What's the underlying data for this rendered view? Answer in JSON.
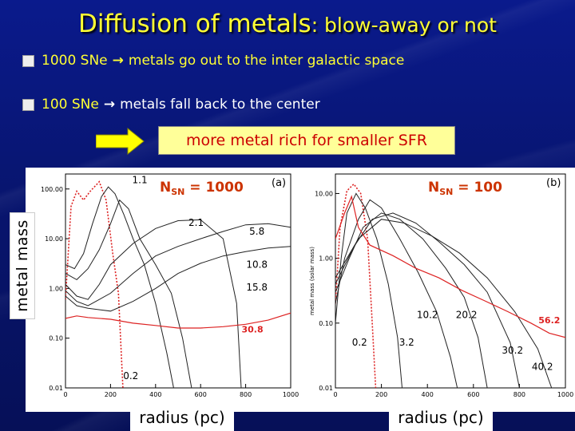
{
  "title": {
    "main": "Diffusion of metals",
    "sub": ": blow-away or not"
  },
  "bullets": [
    {
      "lead": "1000 SNe",
      "rest": "metals go out to the inter galactic space"
    },
    {
      "lead": "100 SNe",
      "rest": "metals fall back to the center"
    }
  ],
  "callout": "more metal rich for smaller SFR",
  "y_label": "metal mass",
  "x_label_left": "radius (pc)",
  "x_label_right": "radius (pc)",
  "colors": {
    "yellow": "#ffff33",
    "red": "#dd2222",
    "accent": "#cc3300"
  },
  "chart_data": [
    {
      "type": "line",
      "panel": "(a)",
      "title": "N",
      "title_sub": "SN",
      "title_rest": " = 1000",
      "yscale": "log",
      "ylim": [
        0.01,
        200
      ],
      "xlim": [
        0,
        1000
      ],
      "xticks": [
        0,
        200,
        400,
        600,
        800,
        1000
      ],
      "yticks": [
        0.01,
        0.1,
        1,
        10,
        100
      ],
      "yticklabels": [
        "0.01",
        "0.10",
        "1.00",
        "10.00",
        "100.00"
      ],
      "ylabel_small": "",
      "series": [
        {
          "name": "0.2",
          "style": "dotted-red",
          "points": [
            [
              0,
              0.6
            ],
            [
              25,
              45
            ],
            [
              50,
              90
            ],
            [
              80,
              60
            ],
            [
              110,
              90
            ],
            [
              150,
              140
            ],
            [
              180,
              60
            ],
            [
              210,
              5
            ],
            [
              235,
              0.8
            ],
            [
              255,
              0.01
            ]
          ]
        },
        {
          "name": "1.1",
          "points": [
            [
              0,
              3
            ],
            [
              40,
              2.5
            ],
            [
              80,
              5
            ],
            [
              120,
              20
            ],
            [
              160,
              70
            ],
            [
              190,
              110
            ],
            [
              220,
              80
            ],
            [
              260,
              30
            ],
            [
              300,
              10
            ],
            [
              350,
              3
            ],
            [
              400,
              0.5
            ],
            [
              450,
              0.05
            ],
            [
              480,
              0.01
            ]
          ]
        },
        {
          "name": "2.1",
          "points": [
            [
              0,
              2
            ],
            [
              50,
              1.5
            ],
            [
              100,
              2.5
            ],
            [
              150,
              6
            ],
            [
              200,
              20
            ],
            [
              240,
              60
            ],
            [
              280,
              40
            ],
            [
              330,
              10
            ],
            [
              400,
              3
            ],
            [
              470,
              0.8
            ],
            [
              520,
              0.1
            ],
            [
              560,
              0.01
            ]
          ]
        },
        {
          "name": "5.8",
          "points": [
            [
              0,
              1.2
            ],
            [
              50,
              0.7
            ],
            [
              100,
              0.6
            ],
            [
              150,
              1.2
            ],
            [
              200,
              3
            ],
            [
              300,
              8
            ],
            [
              400,
              16
            ],
            [
              500,
              23
            ],
            [
              600,
              24
            ],
            [
              700,
              10
            ],
            [
              760,
              0.5
            ],
            [
              780,
              0.01
            ]
          ]
        },
        {
          "name": "10.8",
          "points": [
            [
              0,
              0.9
            ],
            [
              50,
              0.55
            ],
            [
              100,
              0.45
            ],
            [
              200,
              0.8
            ],
            [
              300,
              2
            ],
            [
              400,
              4.5
            ],
            [
              500,
              7
            ],
            [
              600,
              10
            ],
            [
              700,
              14
            ],
            [
              800,
              19
            ],
            [
              900,
              20
            ],
            [
              1000,
              17
            ]
          ]
        },
        {
          "name": "15.8",
          "points": [
            [
              0,
              0.7
            ],
            [
              50,
              0.45
            ],
            [
              100,
              0.4
            ],
            [
              200,
              0.35
            ],
            [
              300,
              0.55
            ],
            [
              400,
              1
            ],
            [
              500,
              2
            ],
            [
              600,
              3.2
            ],
            [
              700,
              4.5
            ],
            [
              800,
              5.5
            ],
            [
              900,
              6.5
            ],
            [
              1000,
              7
            ]
          ]
        },
        {
          "name": "30.8",
          "style": "solid-red",
          "points": [
            [
              0,
              0.25
            ],
            [
              50,
              0.28
            ],
            [
              100,
              0.26
            ],
            [
              200,
              0.24
            ],
            [
              300,
              0.2
            ],
            [
              400,
              0.18
            ],
            [
              500,
              0.16
            ],
            [
              600,
              0.16
            ],
            [
              700,
              0.17
            ],
            [
              800,
              0.19
            ],
            [
              900,
              0.23
            ],
            [
              1000,
              0.32
            ]
          ]
        }
      ],
      "labels": [
        {
          "text": "1.1",
          "x": 330,
          "y": 130
        },
        {
          "text": "2.1",
          "x": 580,
          "y": 18
        },
        {
          "text": "5.8",
          "x": 850,
          "y": 12
        },
        {
          "text": "10.8",
          "x": 850,
          "y": 2.6
        },
        {
          "text": "15.8",
          "x": 850,
          "y": 0.9
        },
        {
          "text": "30.8",
          "x": 830,
          "y": 0.13,
          "color": "red"
        },
        {
          "text": "0.2",
          "x": 290,
          "y": 0.015
        }
      ]
    },
    {
      "type": "line",
      "panel": "(b)",
      "title": "N",
      "title_sub": "SN",
      "title_rest": " = 100",
      "yscale": "log",
      "ylim": [
        0.01,
        20
      ],
      "xlim": [
        0,
        1000
      ],
      "xticks": [
        0,
        200,
        400,
        600,
        800,
        1000
      ],
      "yticks": [
        0.01,
        0.1,
        1,
        10
      ],
      "yticklabels": [
        "0.01",
        "0.10",
        "1.00",
        "10.00"
      ],
      "ylabel_small": "metal mass (solar mass)",
      "series": [
        {
          "name": "0.2",
          "style": "dotted-red",
          "points": [
            [
              0,
              0.2
            ],
            [
              20,
              3
            ],
            [
              50,
              11
            ],
            [
              80,
              14
            ],
            [
              110,
              10
            ],
            [
              140,
              2
            ],
            [
              160,
              0.1
            ],
            [
              175,
              0.01
            ]
          ]
        },
        {
          "name": "3.2",
          "points": [
            [
              0,
              0.1
            ],
            [
              25,
              1
            ],
            [
              50,
              5
            ],
            [
              90,
              10
            ],
            [
              130,
              6
            ],
            [
              180,
              2
            ],
            [
              230,
              0.4
            ],
            [
              270,
              0.06
            ],
            [
              290,
              0.01
            ]
          ]
        },
        {
          "name": "10.2",
          "points": [
            [
              0,
              0.2
            ],
            [
              40,
              1
            ],
            [
              100,
              4
            ],
            [
              150,
              8
            ],
            [
              200,
              6
            ],
            [
              280,
              2
            ],
            [
              360,
              0.6
            ],
            [
              440,
              0.15
            ],
            [
              500,
              0.03
            ],
            [
              530,
              0.01
            ]
          ]
        },
        {
          "name": "20.2",
          "points": [
            [
              0,
              0.3
            ],
            [
              60,
              1
            ],
            [
              120,
              3
            ],
            [
              200,
              5
            ],
            [
              280,
              4
            ],
            [
              380,
              2
            ],
            [
              480,
              0.7
            ],
            [
              560,
              0.25
            ],
            [
              620,
              0.06
            ],
            [
              660,
              0.01
            ]
          ]
        },
        {
          "name": "30.2",
          "points": [
            [
              0,
              0.4
            ],
            [
              80,
              1.5
            ],
            [
              160,
              4
            ],
            [
              250,
              5
            ],
            [
              350,
              3.5
            ],
            [
              450,
              1.8
            ],
            [
              560,
              0.8
            ],
            [
              660,
              0.3
            ],
            [
              760,
              0.05
            ],
            [
              800,
              0.01
            ]
          ]
        },
        {
          "name": "40.2",
          "points": [
            [
              0,
              0.5
            ],
            [
              100,
              2
            ],
            [
              200,
              4
            ],
            [
              300,
              3.5
            ],
            [
              420,
              2.2
            ],
            [
              540,
              1.2
            ],
            [
              660,
              0.5
            ],
            [
              780,
              0.15
            ],
            [
              880,
              0.04
            ],
            [
              940,
              0.01
            ]
          ]
        },
        {
          "name": "56.2",
          "style": "solid-red",
          "points": [
            [
              0,
              2
            ],
            [
              40,
              5
            ],
            [
              70,
              9
            ],
            [
              100,
              3
            ],
            [
              150,
              1.6
            ],
            [
              250,
              1.1
            ],
            [
              350,
              0.7
            ],
            [
              450,
              0.5
            ],
            [
              550,
              0.32
            ],
            [
              650,
              0.22
            ],
            [
              750,
              0.15
            ],
            [
              850,
              0.1
            ],
            [
              930,
              0.07
            ],
            [
              1000,
              0.06
            ]
          ]
        }
      ],
      "labels": [
        {
          "text": "0.2",
          "x": 105,
          "y": 0.045
        },
        {
          "text": "3.2",
          "x": 310,
          "y": 0.045
        },
        {
          "text": "10.2",
          "x": 400,
          "y": 0.12
        },
        {
          "text": "20.2",
          "x": 570,
          "y": 0.12
        },
        {
          "text": "30.2",
          "x": 770,
          "y": 0.034
        },
        {
          "text": "40.2",
          "x": 900,
          "y": 0.019
        },
        {
          "text": "56.2",
          "x": 930,
          "y": 0.1,
          "color": "red"
        }
      ]
    }
  ]
}
